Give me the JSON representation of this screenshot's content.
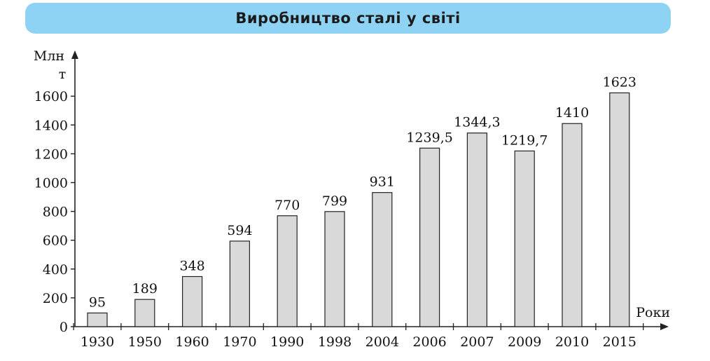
{
  "chart_data": {
    "type": "bar",
    "title": "Виробництво сталі у світі",
    "ylabel_line1": "Млн",
    "ylabel_line2": "т",
    "xlabel": "Роки",
    "categories": [
      "1930",
      "1950",
      "1960",
      "1970",
      "1990",
      "1998",
      "2004",
      "2006",
      "2007",
      "2009",
      "2010",
      "2015"
    ],
    "values": [
      95,
      189,
      348,
      594,
      770,
      799,
      931,
      1239.5,
      1344.3,
      1219.7,
      1410,
      1623
    ],
    "value_labels": [
      "95",
      "189",
      "348",
      "594",
      "770",
      "799",
      "931",
      "1239,5",
      "1344,3",
      "1219,7",
      "1410",
      "1623"
    ],
    "yticks": [
      0,
      200,
      400,
      600,
      800,
      1000,
      1200,
      1400,
      1600
    ],
    "ylim": [
      0,
      1800
    ],
    "grid": false,
    "bar_color": "#d9d9d9",
    "bar_edge_color": "#222222"
  }
}
